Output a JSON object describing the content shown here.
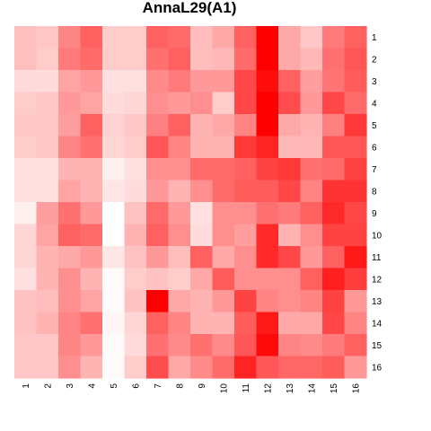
{
  "chart_data": {
    "type": "heatmap",
    "title": "AnnaL29(A1)",
    "x_labels": [
      "1",
      "2",
      "3",
      "4",
      "5",
      "6",
      "7",
      "8",
      "9",
      "10",
      "11",
      "12",
      "13",
      "14",
      "15",
      "16"
    ],
    "y_labels": [
      "1",
      "2",
      "3",
      "4",
      "5",
      "6",
      "7",
      "8",
      "9",
      "10",
      "11",
      "12",
      "13",
      "14",
      "15",
      "16"
    ],
    "color_scale": {
      "low": "#ffffff",
      "high": "#ff0000"
    },
    "value_range": [
      0,
      1
    ],
    "values": [
      [
        0.25,
        0.22,
        0.48,
        0.62,
        0.2,
        0.2,
        0.62,
        0.58,
        0.26,
        0.34,
        0.62,
        1.0,
        0.34,
        0.22,
        0.52,
        0.62
      ],
      [
        0.25,
        0.2,
        0.52,
        0.58,
        0.2,
        0.2,
        0.56,
        0.62,
        0.26,
        0.28,
        0.58,
        1.0,
        0.34,
        0.28,
        0.56,
        0.66
      ],
      [
        0.14,
        0.14,
        0.36,
        0.4,
        0.12,
        0.12,
        0.46,
        0.52,
        0.4,
        0.4,
        0.72,
        0.95,
        0.62,
        0.38,
        0.54,
        0.64
      ],
      [
        0.2,
        0.22,
        0.4,
        0.36,
        0.14,
        0.16,
        0.44,
        0.4,
        0.44,
        0.2,
        0.72,
        1.0,
        0.7,
        0.4,
        0.72,
        0.58
      ],
      [
        0.22,
        0.22,
        0.38,
        0.62,
        0.18,
        0.22,
        0.5,
        0.62,
        0.3,
        0.34,
        0.48,
        1.0,
        0.34,
        0.3,
        0.5,
        0.78
      ],
      [
        0.2,
        0.22,
        0.48,
        0.56,
        0.16,
        0.2,
        0.66,
        0.48,
        0.3,
        0.3,
        0.78,
        0.86,
        0.28,
        0.28,
        0.66,
        0.66
      ],
      [
        0.12,
        0.12,
        0.3,
        0.3,
        0.06,
        0.12,
        0.44,
        0.44,
        0.58,
        0.58,
        0.62,
        0.74,
        0.78,
        0.56,
        0.58,
        0.74
      ],
      [
        0.12,
        0.12,
        0.36,
        0.3,
        0.1,
        0.14,
        0.4,
        0.3,
        0.44,
        0.58,
        0.64,
        0.64,
        0.72,
        0.48,
        0.8,
        0.8
      ],
      [
        0.06,
        0.38,
        0.56,
        0.4,
        0.0,
        0.24,
        0.58,
        0.4,
        0.12,
        0.44,
        0.44,
        0.56,
        0.52,
        0.62,
        0.84,
        0.72
      ],
      [
        0.16,
        0.36,
        0.62,
        0.58,
        0.0,
        0.3,
        0.62,
        0.44,
        0.14,
        0.44,
        0.38,
        0.84,
        0.3,
        0.44,
        0.74,
        0.74
      ],
      [
        0.16,
        0.3,
        0.34,
        0.4,
        0.1,
        0.24,
        0.4,
        0.26,
        0.62,
        0.34,
        0.44,
        0.84,
        0.72,
        0.4,
        0.62,
        0.9
      ],
      [
        0.12,
        0.3,
        0.44,
        0.3,
        0.02,
        0.2,
        0.24,
        0.2,
        0.34,
        0.64,
        0.44,
        0.44,
        0.44,
        0.62,
        0.88,
        0.76
      ],
      [
        0.24,
        0.26,
        0.44,
        0.36,
        0.02,
        0.24,
        1.0,
        0.34,
        0.3,
        0.4,
        0.74,
        0.48,
        0.44,
        0.48,
        0.74,
        0.4
      ],
      [
        0.24,
        0.3,
        0.48,
        0.56,
        0.04,
        0.16,
        0.62,
        0.48,
        0.3,
        0.3,
        0.64,
        0.9,
        0.34,
        0.34,
        0.72,
        0.48
      ],
      [
        0.22,
        0.22,
        0.48,
        0.4,
        0.02,
        0.14,
        0.56,
        0.46,
        0.56,
        0.46,
        0.66,
        0.96,
        0.48,
        0.46,
        0.52,
        0.62
      ],
      [
        0.22,
        0.22,
        0.44,
        0.3,
        0.02,
        0.2,
        0.7,
        0.34,
        0.46,
        0.58,
        0.86,
        0.66,
        0.6,
        0.6,
        0.64,
        0.4
      ]
    ]
  }
}
